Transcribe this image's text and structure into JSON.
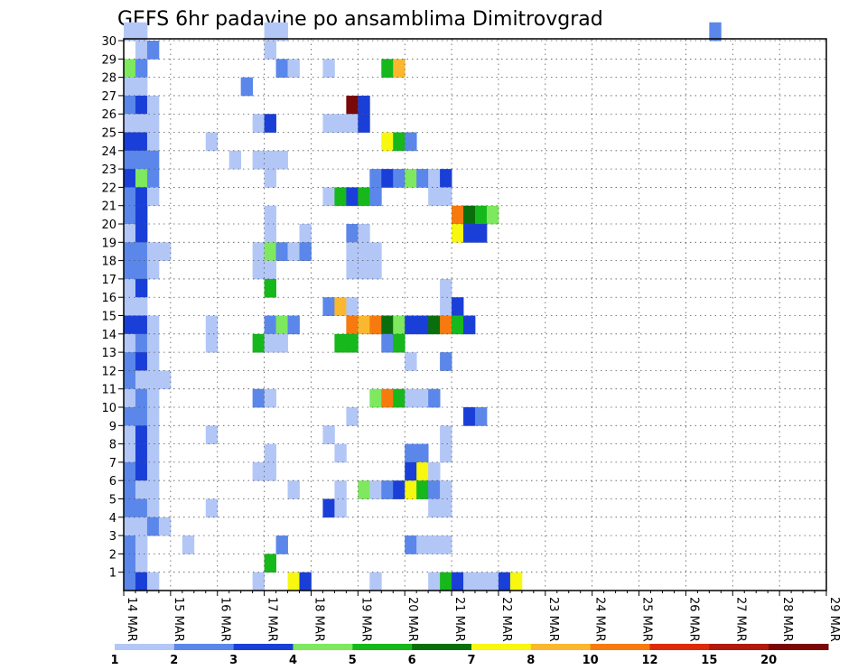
{
  "chart_data": {
    "type": "heatmap",
    "title": "GEFS 6hr padavine po ansamblima Dimitrovgrad",
    "x_ticks": [
      "14 MAR",
      "15 MAR",
      "16 MAR",
      "17 MAR",
      "18 MAR",
      "19 MAR",
      "20 MAR",
      "21 MAR",
      "22 MAR",
      "23 MAR",
      "24 MAR",
      "25 MAR",
      "26 MAR",
      "27 MAR",
      "28 MAR",
      "29 MAR"
    ],
    "y_ticks": [
      "1",
      "2",
      "3",
      "4",
      "5",
      "6",
      "7",
      "8",
      "9",
      "10",
      "11",
      "12",
      "13",
      "14",
      "15",
      "16",
      "17",
      "18",
      "19",
      "20",
      "21",
      "22",
      "23",
      "24",
      "25",
      "26",
      "27",
      "28",
      "29",
      "30"
    ],
    "xlim": [
      0,
      60
    ],
    "ylim": [
      0,
      30
    ],
    "grid": true,
    "colorbar": {
      "labels": [
        "1",
        "2",
        "3",
        "4",
        "5",
        "6",
        "7",
        "8",
        "10",
        "12",
        "15",
        "20"
      ],
      "colors": [
        "#b3c7f7",
        "#5b87ea",
        "#1a3fd8",
        "#7ee85e",
        "#17b81c",
        "#0b6e0c",
        "#f7f70f",
        "#fbb72e",
        "#f77a0e",
        "#dd2a08",
        "#b0190c",
        "#7a0808"
      ]
    },
    "cells": [
      [
        0,
        30,
        0
      ],
      [
        1,
        30,
        0
      ],
      [
        12,
        30,
        0
      ],
      [
        13,
        30,
        0
      ],
      [
        50,
        30,
        1
      ],
      [
        1,
        29,
        0
      ],
      [
        2,
        29,
        1
      ],
      [
        12,
        29,
        0
      ],
      [
        0,
        28,
        3
      ],
      [
        1,
        28,
        1
      ],
      [
        13,
        28,
        1
      ],
      [
        14,
        28,
        0
      ],
      [
        17,
        28,
        0
      ],
      [
        22,
        28,
        4
      ],
      [
        23,
        28,
        7
      ],
      [
        0,
        27,
        0
      ],
      [
        1,
        27,
        0
      ],
      [
        10,
        27,
        1
      ],
      [
        0,
        26,
        1
      ],
      [
        1,
        26,
        2
      ],
      [
        2,
        26,
        0
      ],
      [
        19,
        26,
        11
      ],
      [
        20,
        26,
        2
      ],
      [
        0,
        25,
        0
      ],
      [
        1,
        25,
        0
      ],
      [
        2,
        25,
        0
      ],
      [
        11,
        25,
        0
      ],
      [
        12,
        25,
        2
      ],
      [
        17,
        25,
        0
      ],
      [
        18,
        25,
        0
      ],
      [
        19,
        25,
        0
      ],
      [
        20,
        25,
        2
      ],
      [
        0,
        24,
        2
      ],
      [
        1,
        24,
        2
      ],
      [
        2,
        24,
        0
      ],
      [
        7,
        24,
        0
      ],
      [
        22,
        24,
        6
      ],
      [
        23,
        24,
        4
      ],
      [
        24,
        24,
        1
      ],
      [
        0,
        23,
        1
      ],
      [
        1,
        23,
        1
      ],
      [
        2,
        23,
        1
      ],
      [
        9,
        23,
        0
      ],
      [
        11,
        23,
        0
      ],
      [
        12,
        23,
        0
      ],
      [
        13,
        23,
        0
      ],
      [
        0,
        22,
        2
      ],
      [
        1,
        22,
        3
      ],
      [
        2,
        22,
        1
      ],
      [
        12,
        22,
        0
      ],
      [
        21,
        22,
        1
      ],
      [
        22,
        22,
        2
      ],
      [
        23,
        22,
        1
      ],
      [
        24,
        22,
        3
      ],
      [
        25,
        22,
        1
      ],
      [
        26,
        22,
        0
      ],
      [
        27,
        22,
        2
      ],
      [
        0,
        21,
        1
      ],
      [
        1,
        21,
        2
      ],
      [
        2,
        21,
        0
      ],
      [
        17,
        21,
        0
      ],
      [
        18,
        21,
        4
      ],
      [
        19,
        21,
        2
      ],
      [
        20,
        21,
        4
      ],
      [
        21,
        21,
        1
      ],
      [
        26,
        21,
        0
      ],
      [
        27,
        21,
        0
      ],
      [
        0,
        20,
        1
      ],
      [
        1,
        20,
        2
      ],
      [
        12,
        20,
        0
      ],
      [
        28,
        20,
        8
      ],
      [
        29,
        20,
        5
      ],
      [
        30,
        20,
        4
      ],
      [
        31,
        20,
        3
      ],
      [
        0,
        19,
        0
      ],
      [
        1,
        19,
        2
      ],
      [
        12,
        19,
        0
      ],
      [
        15,
        19,
        0
      ],
      [
        19,
        19,
        1
      ],
      [
        20,
        19,
        0
      ],
      [
        28,
        19,
        6
      ],
      [
        29,
        19,
        2
      ],
      [
        30,
        19,
        2
      ],
      [
        0,
        18,
        1
      ],
      [
        1,
        18,
        1
      ],
      [
        2,
        18,
        0
      ],
      [
        3,
        18,
        0
      ],
      [
        11,
        18,
        0
      ],
      [
        12,
        18,
        3
      ],
      [
        13,
        18,
        1
      ],
      [
        14,
        18,
        0
      ],
      [
        15,
        18,
        1
      ],
      [
        19,
        18,
        0
      ],
      [
        20,
        18,
        0
      ],
      [
        21,
        18,
        0
      ],
      [
        0,
        17,
        1
      ],
      [
        1,
        17,
        1
      ],
      [
        2,
        17,
        0
      ],
      [
        11,
        17,
        0
      ],
      [
        12,
        17,
        0
      ],
      [
        19,
        17,
        0
      ],
      [
        20,
        17,
        0
      ],
      [
        21,
        17,
        0
      ],
      [
        0,
        16,
        0
      ],
      [
        1,
        16,
        2
      ],
      [
        12,
        16,
        4
      ],
      [
        27,
        16,
        0
      ],
      [
        0,
        15,
        0
      ],
      [
        1,
        15,
        0
      ],
      [
        17,
        15,
        1
      ],
      [
        18,
        15,
        7
      ],
      [
        19,
        15,
        0
      ],
      [
        27,
        15,
        0
      ],
      [
        28,
        15,
        2
      ],
      [
        0,
        14,
        2
      ],
      [
        1,
        14,
        2
      ],
      [
        2,
        14,
        0
      ],
      [
        7,
        14,
        0
      ],
      [
        12,
        14,
        1
      ],
      [
        13,
        14,
        3
      ],
      [
        14,
        14,
        1
      ],
      [
        19,
        14,
        8
      ],
      [
        20,
        14,
        7
      ],
      [
        21,
        14,
        8
      ],
      [
        22,
        14,
        5
      ],
      [
        23,
        14,
        3
      ],
      [
        24,
        14,
        2
      ],
      [
        25,
        14,
        2
      ],
      [
        26,
        14,
        5
      ],
      [
        27,
        14,
        8
      ],
      [
        28,
        14,
        4
      ],
      [
        29,
        14,
        2
      ],
      [
        0,
        13,
        0
      ],
      [
        1,
        13,
        1
      ],
      [
        2,
        13,
        0
      ],
      [
        7,
        13,
        0
      ],
      [
        11,
        13,
        4
      ],
      [
        12,
        13,
        0
      ],
      [
        13,
        13,
        0
      ],
      [
        18,
        13,
        4
      ],
      [
        19,
        13,
        4
      ],
      [
        22,
        13,
        1
      ],
      [
        23,
        13,
        4
      ],
      [
        0,
        12,
        1
      ],
      [
        1,
        12,
        2
      ],
      [
        2,
        12,
        0
      ],
      [
        24,
        12,
        0
      ],
      [
        27,
        12,
        1
      ],
      [
        0,
        11,
        1
      ],
      [
        1,
        11,
        0
      ],
      [
        2,
        11,
        0
      ],
      [
        3,
        11,
        0
      ],
      [
        0,
        10,
        0
      ],
      [
        1,
        10,
        1
      ],
      [
        2,
        10,
        0
      ],
      [
        11,
        10,
        1
      ],
      [
        12,
        10,
        0
      ],
      [
        21,
        10,
        3
      ],
      [
        22,
        10,
        8
      ],
      [
        23,
        10,
        4
      ],
      [
        24,
        10,
        0
      ],
      [
        25,
        10,
        0
      ],
      [
        26,
        10,
        1
      ],
      [
        0,
        9,
        1
      ],
      [
        1,
        9,
        1
      ],
      [
        2,
        9,
        0
      ],
      [
        19,
        9,
        0
      ],
      [
        29,
        9,
        2
      ],
      [
        30,
        9,
        1
      ],
      [
        0,
        8,
        0
      ],
      [
        1,
        8,
        2
      ],
      [
        2,
        8,
        0
      ],
      [
        7,
        8,
        0
      ],
      [
        17,
        8,
        0
      ],
      [
        27,
        8,
        0
      ],
      [
        0,
        7,
        0
      ],
      [
        1,
        7,
        2
      ],
      [
        2,
        7,
        0
      ],
      [
        12,
        7,
        0
      ],
      [
        18,
        7,
        0
      ],
      [
        24,
        7,
        1
      ],
      [
        25,
        7,
        1
      ],
      [
        27,
        7,
        0
      ],
      [
        0,
        6,
        1
      ],
      [
        1,
        6,
        2
      ],
      [
        2,
        6,
        0
      ],
      [
        11,
        6,
        0
      ],
      [
        12,
        6,
        0
      ],
      [
        24,
        6,
        2
      ],
      [
        25,
        6,
        6
      ],
      [
        26,
        6,
        0
      ],
      [
        0,
        5,
        1
      ],
      [
        1,
        5,
        0
      ],
      [
        2,
        5,
        0
      ],
      [
        14,
        5,
        0
      ],
      [
        18,
        5,
        0
      ],
      [
        20,
        5,
        3
      ],
      [
        21,
        5,
        0
      ],
      [
        22,
        5,
        1
      ],
      [
        23,
        5,
        2
      ],
      [
        24,
        5,
        6
      ],
      [
        25,
        5,
        4
      ],
      [
        26,
        5,
        1
      ],
      [
        27,
        5,
        0
      ],
      [
        0,
        4,
        1
      ],
      [
        1,
        4,
        1
      ],
      [
        2,
        4,
        0
      ],
      [
        7,
        4,
        0
      ],
      [
        17,
        4,
        2
      ],
      [
        18,
        4,
        0
      ],
      [
        26,
        4,
        0
      ],
      [
        27,
        4,
        0
      ],
      [
        0,
        3,
        0
      ],
      [
        1,
        3,
        0
      ],
      [
        2,
        3,
        1
      ],
      [
        3,
        3,
        0
      ],
      [
        0,
        2,
        1
      ],
      [
        1,
        2,
        0
      ],
      [
        5,
        2,
        0
      ],
      [
        13,
        2,
        1
      ],
      [
        24,
        2,
        1
      ],
      [
        25,
        2,
        0
      ],
      [
        26,
        2,
        0
      ],
      [
        27,
        2,
        0
      ],
      [
        0,
        1,
        1
      ],
      [
        1,
        1,
        0
      ],
      [
        12,
        1,
        4
      ],
      [
        0,
        0,
        1
      ],
      [
        1,
        0,
        2
      ],
      [
        2,
        0,
        0
      ],
      [
        11,
        0,
        0
      ],
      [
        14,
        0,
        6
      ],
      [
        15,
        0,
        2
      ],
      [
        21,
        0,
        0
      ],
      [
        26,
        0,
        0
      ],
      [
        27,
        0,
        4
      ],
      [
        28,
        0,
        2
      ],
      [
        29,
        0,
        0
      ],
      [
        30,
        0,
        0
      ],
      [
        31,
        0,
        0
      ],
      [
        32,
        0,
        2
      ],
      [
        33,
        0,
        6
      ]
    ]
  }
}
